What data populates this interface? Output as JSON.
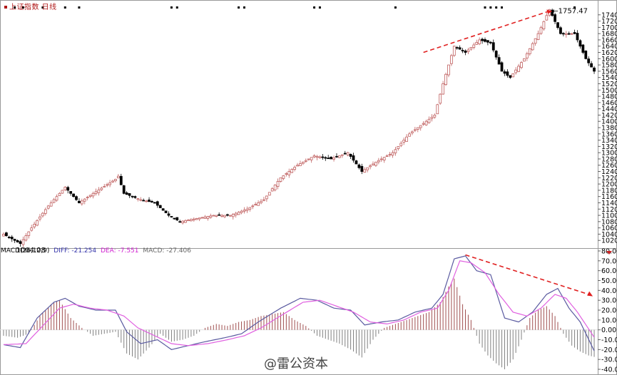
{
  "header": {
    "title": "上证指数 日线"
  },
  "annotations": {
    "high_label": "1757.47",
    "low_label": "1004.08"
  },
  "macd_header": {
    "name": "MACD(26,12,9)",
    "diff": "DIFF: -21.254",
    "dea": "DEA: -7.551",
    "macd": "MACD: -27.406"
  },
  "watermark": "@雷公资本",
  "colors": {
    "up": "#c06060",
    "down": "#000000",
    "diff": "#5a5aa0",
    "dea": "#e060e0",
    "trend": "#e02020",
    "macd_pos": "#a05050",
    "macd_neg": "#808080",
    "grid": "#cccccc"
  },
  "chart_data": [
    {
      "type": "candlestick",
      "title": "上证指数 日线",
      "ylim": [
        1000,
        1760
      ],
      "y_ticks": [
        1020,
        1040,
        1060,
        1080,
        1100,
        1120,
        1140,
        1160,
        1180,
        1200,
        1220,
        1240,
        1260,
        1280,
        1300,
        1320,
        1340,
        1360,
        1380,
        1400,
        1420,
        1440,
        1460,
        1480,
        1500,
        1520,
        1540,
        1560,
        1580,
        1600,
        1620,
        1640,
        1660,
        1680,
        1700,
        1720,
        1740
      ],
      "close_path_anchors": [
        {
          "i": 0,
          "v": 1040
        },
        {
          "i": 6,
          "v": 1010
        },
        {
          "i": 10,
          "v": 1060
        },
        {
          "i": 16,
          "v": 1130
        },
        {
          "i": 22,
          "v": 1190
        },
        {
          "i": 27,
          "v": 1140
        },
        {
          "i": 32,
          "v": 1170
        },
        {
          "i": 40,
          "v": 1215
        },
        {
          "i": 41,
          "v": 1225
        },
        {
          "i": 43,
          "v": 1170
        },
        {
          "i": 49,
          "v": 1150
        },
        {
          "i": 54,
          "v": 1140
        },
        {
          "i": 59,
          "v": 1100
        },
        {
          "i": 63,
          "v": 1080
        },
        {
          "i": 69,
          "v": 1090
        },
        {
          "i": 75,
          "v": 1100
        },
        {
          "i": 81,
          "v": 1100
        },
        {
          "i": 87,
          "v": 1120
        },
        {
          "i": 93,
          "v": 1150
        },
        {
          "i": 99,
          "v": 1220
        },
        {
          "i": 105,
          "v": 1260
        },
        {
          "i": 111,
          "v": 1290
        },
        {
          "i": 117,
          "v": 1280
        },
        {
          "i": 123,
          "v": 1300
        },
        {
          "i": 128,
          "v": 1240
        },
        {
          "i": 133,
          "v": 1270
        },
        {
          "i": 139,
          "v": 1300
        },
        {
          "i": 145,
          "v": 1360
        },
        {
          "i": 151,
          "v": 1400
        },
        {
          "i": 154,
          "v": 1420
        },
        {
          "i": 157,
          "v": 1520
        },
        {
          "i": 161,
          "v": 1640
        },
        {
          "i": 165,
          "v": 1620
        },
        {
          "i": 170,
          "v": 1660
        },
        {
          "i": 174,
          "v": 1650
        },
        {
          "i": 178,
          "v": 1560
        },
        {
          "i": 181,
          "v": 1540
        },
        {
          "i": 186,
          "v": 1600
        },
        {
          "i": 191,
          "v": 1680
        },
        {
          "i": 195,
          "v": 1757
        },
        {
          "i": 199,
          "v": 1680
        },
        {
          "i": 204,
          "v": 1680
        },
        {
          "i": 208,
          "v": 1600
        },
        {
          "i": 211,
          "v": 1560
        }
      ],
      "count": 212,
      "labels": {
        "max": "1757.47",
        "min": "1004.08"
      }
    },
    {
      "type": "line+bar",
      "title": "MACD(26,12,9)",
      "ylim": [
        -40,
        80
      ],
      "y_ticks": [
        -40,
        -30,
        -20,
        -10,
        0,
        10,
        20,
        30,
        40,
        50,
        60,
        70,
        80
      ],
      "series": [
        {
          "name": "DIFF",
          "anchors": [
            {
              "i": 0,
              "v": -15
            },
            {
              "i": 6,
              "v": -18
            },
            {
              "i": 12,
              "v": 12
            },
            {
              "i": 18,
              "v": 28
            },
            {
              "i": 22,
              "v": 32
            },
            {
              "i": 27,
              "v": 24
            },
            {
              "i": 33,
              "v": 20
            },
            {
              "i": 40,
              "v": 20
            },
            {
              "i": 44,
              "v": -2
            },
            {
              "i": 49,
              "v": -14
            },
            {
              "i": 55,
              "v": -10
            },
            {
              "i": 60,
              "v": -20
            },
            {
              "i": 66,
              "v": -16
            },
            {
              "i": 72,
              "v": -12
            },
            {
              "i": 79,
              "v": -8
            },
            {
              "i": 85,
              "v": -4
            },
            {
              "i": 91,
              "v": 8
            },
            {
              "i": 99,
              "v": 22
            },
            {
              "i": 106,
              "v": 32
            },
            {
              "i": 112,
              "v": 30
            },
            {
              "i": 118,
              "v": 22
            },
            {
              "i": 124,
              "v": 20
            },
            {
              "i": 129,
              "v": 5
            },
            {
              "i": 135,
              "v": 8
            },
            {
              "i": 141,
              "v": 10
            },
            {
              "i": 147,
              "v": 18
            },
            {
              "i": 153,
              "v": 22
            },
            {
              "i": 157,
              "v": 36
            },
            {
              "i": 161,
              "v": 72
            },
            {
              "i": 165,
              "v": 75
            },
            {
              "i": 169,
              "v": 60
            },
            {
              "i": 174,
              "v": 56
            },
            {
              "i": 179,
              "v": 12
            },
            {
              "i": 184,
              "v": 8
            },
            {
              "i": 189,
              "v": 18
            },
            {
              "i": 194,
              "v": 36
            },
            {
              "i": 198,
              "v": 42
            },
            {
              "i": 202,
              "v": 22
            },
            {
              "i": 206,
              "v": 8
            },
            {
              "i": 211,
              "v": -21.254
            }
          ]
        },
        {
          "name": "DEA",
          "anchors": [
            {
              "i": 0,
              "v": -15
            },
            {
              "i": 8,
              "v": -14
            },
            {
              "i": 14,
              "v": 4
            },
            {
              "i": 20,
              "v": 22
            },
            {
              "i": 25,
              "v": 26
            },
            {
              "i": 31,
              "v": 22
            },
            {
              "i": 37,
              "v": 20
            },
            {
              "i": 43,
              "v": 14
            },
            {
              "i": 48,
              "v": 2
            },
            {
              "i": 54,
              "v": -6
            },
            {
              "i": 60,
              "v": -14
            },
            {
              "i": 66,
              "v": -16
            },
            {
              "i": 73,
              "v": -14
            },
            {
              "i": 80,
              "v": -10
            },
            {
              "i": 86,
              "v": -6
            },
            {
              "i": 92,
              "v": 2
            },
            {
              "i": 100,
              "v": 16
            },
            {
              "i": 107,
              "v": 28
            },
            {
              "i": 113,
              "v": 30
            },
            {
              "i": 119,
              "v": 24
            },
            {
              "i": 125,
              "v": 18
            },
            {
              "i": 131,
              "v": 8
            },
            {
              "i": 137,
              "v": 6
            },
            {
              "i": 143,
              "v": 10
            },
            {
              "i": 149,
              "v": 18
            },
            {
              "i": 155,
              "v": 22
            },
            {
              "i": 159,
              "v": 40
            },
            {
              "i": 163,
              "v": 70
            },
            {
              "i": 167,
              "v": 68
            },
            {
              "i": 172,
              "v": 58
            },
            {
              "i": 177,
              "v": 36
            },
            {
              "i": 182,
              "v": 18
            },
            {
              "i": 187,
              "v": 14
            },
            {
              "i": 192,
              "v": 22
            },
            {
              "i": 197,
              "v": 36
            },
            {
              "i": 201,
              "v": 32
            },
            {
              "i": 205,
              "v": 18
            },
            {
              "i": 211,
              "v": -7.551
            }
          ]
        },
        {
          "name": "MACD",
          "anchors": [
            {
              "i": 0,
              "v": -6
            },
            {
              "i": 5,
              "v": -8
            },
            {
              "i": 9,
              "v": -4
            },
            {
              "i": 13,
              "v": 14
            },
            {
              "i": 17,
              "v": 26
            },
            {
              "i": 20,
              "v": 30
            },
            {
              "i": 24,
              "v": 12
            },
            {
              "i": 28,
              "v": 2
            },
            {
              "i": 32,
              "v": -6
            },
            {
              "i": 36,
              "v": -4
            },
            {
              "i": 40,
              "v": -2
            },
            {
              "i": 44,
              "v": -24
            },
            {
              "i": 48,
              "v": -30
            },
            {
              "i": 52,
              "v": -18
            },
            {
              "i": 56,
              "v": -4
            },
            {
              "i": 60,
              "v": -12
            },
            {
              "i": 64,
              "v": -10
            },
            {
              "i": 68,
              "v": -6
            },
            {
              "i": 72,
              "v": 2
            },
            {
              "i": 76,
              "v": 6
            },
            {
              "i": 80,
              "v": 4
            },
            {
              "i": 84,
              "v": 8
            },
            {
              "i": 88,
              "v": 10
            },
            {
              "i": 92,
              "v": 14
            },
            {
              "i": 96,
              "v": 16
            },
            {
              "i": 100,
              "v": 18
            },
            {
              "i": 104,
              "v": 10
            },
            {
              "i": 108,
              "v": 4
            },
            {
              "i": 112,
              "v": -6
            },
            {
              "i": 116,
              "v": -10
            },
            {
              "i": 120,
              "v": -14
            },
            {
              "i": 124,
              "v": -20
            },
            {
              "i": 128,
              "v": -28
            },
            {
              "i": 132,
              "v": -10
            },
            {
              "i": 136,
              "v": 2
            },
            {
              "i": 140,
              "v": 6
            },
            {
              "i": 144,
              "v": 10
            },
            {
              "i": 148,
              "v": 14
            },
            {
              "i": 152,
              "v": 18
            },
            {
              "i": 156,
              "v": 28
            },
            {
              "i": 159,
              "v": 44
            },
            {
              "i": 161,
              "v": 52
            },
            {
              "i": 164,
              "v": 26
            },
            {
              "i": 167,
              "v": 10
            },
            {
              "i": 170,
              "v": -14
            },
            {
              "i": 173,
              "v": -26
            },
            {
              "i": 176,
              "v": -34
            },
            {
              "i": 179,
              "v": -40
            },
            {
              "i": 182,
              "v": -30
            },
            {
              "i": 185,
              "v": -10
            },
            {
              "i": 188,
              "v": 12
            },
            {
              "i": 191,
              "v": 20
            },
            {
              "i": 194,
              "v": 24
            },
            {
              "i": 197,
              "v": 14
            },
            {
              "i": 200,
              "v": -4
            },
            {
              "i": 203,
              "v": -16
            },
            {
              "i": 206,
              "v": -22
            },
            {
              "i": 209,
              "v": -26
            },
            {
              "i": 211,
              "v": -27.406
            }
          ]
        }
      ]
    }
  ]
}
